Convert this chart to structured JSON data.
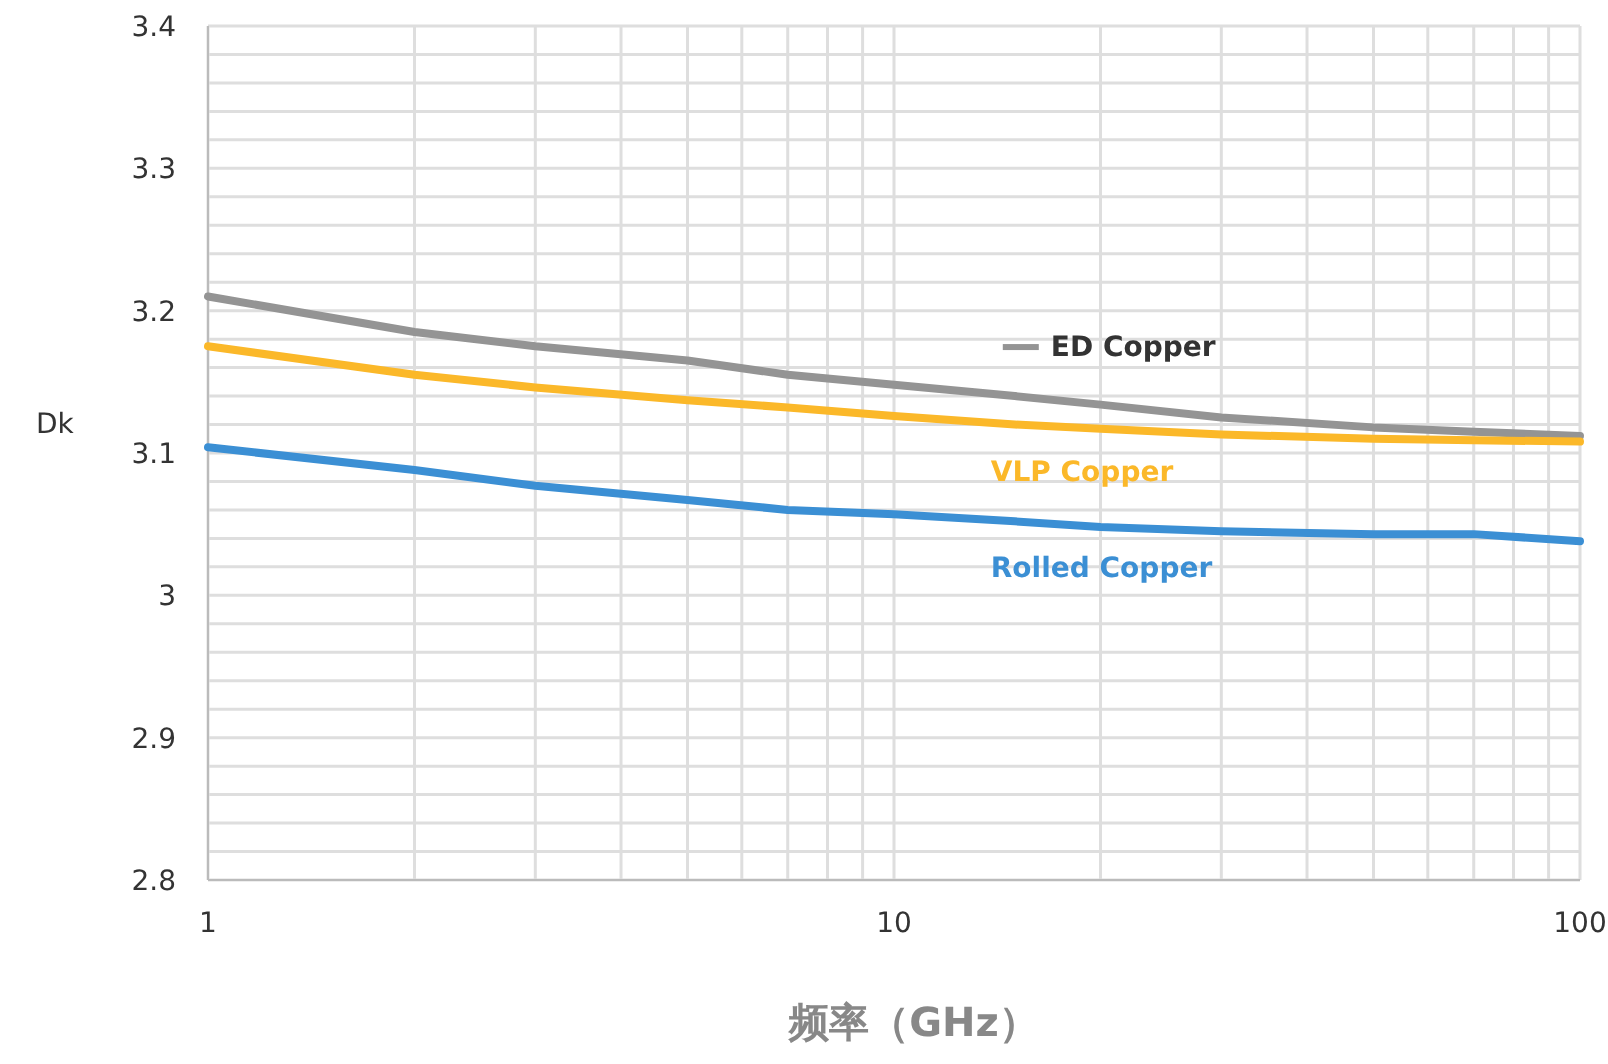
{
  "chart_data": {
    "type": "line",
    "xlabel": "频率（GHz）",
    "ylabel": "Dk",
    "log": "x",
    "grid": true,
    "marker": "none",
    "line_style": "solid",
    "xlim": [
      1,
      100
    ],
    "ylim": [
      2.8,
      3.4
    ],
    "xticks": [
      1,
      {
        "value": 2,
        "label": null
      },
      {
        "value": 3,
        "label": null
      },
      {
        "value": 4,
        "label": null
      },
      {
        "value": 5,
        "label": null
      },
      {
        "value": 6,
        "label": null
      },
      {
        "value": 7,
        "label": null
      },
      {
        "value": 8,
        "label": null
      },
      {
        "value": 9,
        "label": null
      },
      10,
      {
        "value": 20,
        "label": null
      },
      {
        "value": 30,
        "label": null
      },
      {
        "value": 40,
        "label": null
      },
      {
        "value": 50,
        "label": null
      },
      {
        "value": 60,
        "label": null
      },
      {
        "value": 70,
        "label": null
      },
      {
        "value": 80,
        "label": null
      },
      {
        "value": 90,
        "label": null
      },
      100
    ],
    "yticks": [
      2.8,
      {
        "value": 2.82,
        "label": null
      },
      {
        "value": 2.84,
        "label": null
      },
      {
        "value": 2.86,
        "label": null
      },
      {
        "value": 2.88,
        "label": null
      },
      2.9,
      {
        "value": 2.92,
        "label": null
      },
      {
        "value": 2.94,
        "label": null
      },
      {
        "value": 2.96,
        "label": null
      },
      {
        "value": 2.98,
        "label": null
      },
      3,
      {
        "value": 3.02,
        "label": null
      },
      {
        "value": 3.04,
        "label": null
      },
      {
        "value": 3.06,
        "label": null
      },
      {
        "value": 3.08,
        "label": null
      },
      3.1,
      {
        "value": 3.12,
        "label": null
      },
      {
        "value": 3.14,
        "label": null
      },
      {
        "value": 3.16,
        "label": null
      },
      {
        "value": 3.18,
        "label": null
      },
      3.2,
      {
        "value": 3.22,
        "label": null
      },
      {
        "value": 3.24,
        "label": null
      },
      {
        "value": 3.26,
        "label": null
      },
      {
        "value": 3.28,
        "label": null
      },
      3.3,
      {
        "value": 3.32,
        "label": null
      },
      {
        "value": 3.34,
        "label": null
      },
      {
        "value": 3.36,
        "label": null
      },
      {
        "value": 3.38,
        "label": null
      },
      3.4
    ],
    "x": [
      1,
      2,
      3,
      5,
      7,
      10,
      15,
      20,
      30,
      50,
      70,
      100
    ],
    "series": [
      {
        "name": "ED Copper",
        "color": "#949494",
        "values": [
          3.21,
          3.185,
          3.175,
          3.165,
          3.155,
          3.148,
          3.14,
          3.134,
          3.125,
          3.118,
          3.115,
          3.112
        ]
      },
      {
        "name": "VLP Copper",
        "color": "#fbb829",
        "values": [
          3.175,
          3.155,
          3.146,
          3.137,
          3.132,
          3.126,
          3.12,
          3.117,
          3.113,
          3.11,
          3.109,
          3.108
        ]
      },
      {
        "name": "Rolled Copper",
        "color": "#3b8fd4",
        "values": [
          3.104,
          3.088,
          3.077,
          3.067,
          3.06,
          3.057,
          3.052,
          3.048,
          3.045,
          3.043,
          3.043,
          3.038
        ]
      }
    ]
  }
}
